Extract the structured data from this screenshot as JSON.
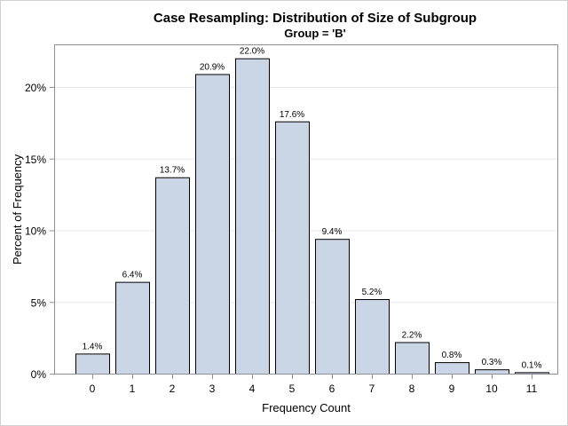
{
  "chart_data": {
    "type": "bar",
    "title": "Case Resampling: Distribution of Size of Subgroup",
    "subtitle": "Group = 'B'",
    "xlabel": "Frequency Count",
    "ylabel": "Percent of Frequency",
    "categories": [
      "0",
      "1",
      "2",
      "3",
      "4",
      "5",
      "6",
      "7",
      "8",
      "9",
      "10",
      "11"
    ],
    "values": [
      1.4,
      6.4,
      13.7,
      20.9,
      22.0,
      17.6,
      9.4,
      5.2,
      2.2,
      0.8,
      0.3,
      0.1
    ],
    "data_labels": [
      "1.4%",
      "6.4%",
      "13.7%",
      "20.9%",
      "22.0%",
      "17.6%",
      "9.4%",
      "5.2%",
      "2.2%",
      "0.8%",
      "0.3%",
      "0.1%"
    ],
    "yticks": [
      0,
      5,
      10,
      15,
      20
    ],
    "ytick_labels": [
      "0%",
      "5%",
      "10%",
      "15%",
      "20%"
    ],
    "ylim": [
      0,
      23
    ],
    "grid": true,
    "colors": {
      "bar_fill": "#cad5e5",
      "bar_stroke": "#000000",
      "grid": "#e8e8e8",
      "axis": "#8c9096"
    }
  }
}
